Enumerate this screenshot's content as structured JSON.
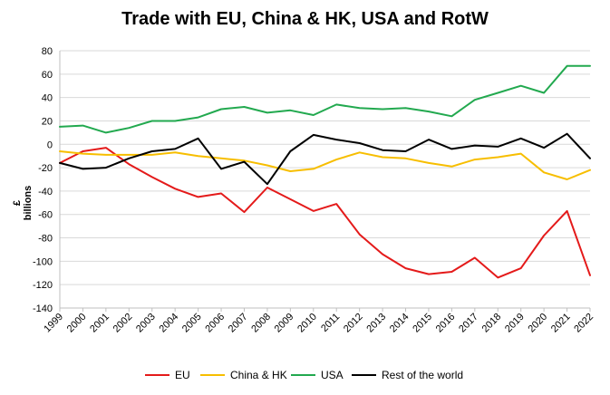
{
  "chart_data": {
    "type": "line",
    "title": "Trade with EU, China & HK, USA and RotW",
    "xlabel": "",
    "ylabel": "£ billions",
    "ylim": [
      -140,
      80
    ],
    "yticks": [
      80,
      60,
      40,
      20,
      0,
      -20,
      -40,
      -60,
      -80,
      -100,
      -120,
      -140
    ],
    "grid": true,
    "legend_position": "bottom",
    "categories": [
      "1999",
      "2000",
      "2001",
      "2002",
      "2003",
      "2004",
      "2005",
      "2006",
      "2007",
      "2008",
      "2009",
      "2010",
      "2011",
      "2012",
      "2013",
      "2014",
      "2015",
      "2016",
      "2017",
      "2018",
      "2019",
      "2020",
      "2021",
      "2022"
    ],
    "series": [
      {
        "name": "EU",
        "color": "#e41a1a",
        "values": [
          -16,
          -6,
          -3,
          -17,
          -28,
          -38,
          -45,
          -42,
          -58,
          -37,
          -47,
          -57,
          -51,
          -77,
          -94,
          -106,
          -111,
          -109,
          -97,
          -114,
          -106,
          -78,
          -57,
          -112
        ]
      },
      {
        "name": "China & HK",
        "color": "#f7be00",
        "values": [
          -6,
          -8,
          -9,
          -9,
          -9,
          -7,
          -10,
          -12,
          -14,
          -18,
          -23,
          -21,
          -13,
          -7,
          -11,
          -12,
          -16,
          -19,
          -13,
          -11,
          -8,
          -24,
          -30,
          -22
        ]
      },
      {
        "name": "USA",
        "color": "#22a94f",
        "values": [
          15,
          16,
          10,
          14,
          20,
          20,
          23,
          30,
          32,
          27,
          29,
          25,
          34,
          31,
          30,
          31,
          28,
          24,
          38,
          44,
          50,
          44,
          67,
          67
        ]
      },
      {
        "name": "Rest of the world",
        "color": "#000000",
        "values": [
          -16,
          -21,
          -20,
          -12,
          -6,
          -4,
          5,
          -21,
          -15,
          -34,
          -6,
          8,
          4,
          1,
          -5,
          -6,
          4,
          -4,
          -1,
          -2,
          5,
          -3,
          9,
          -12
        ]
      }
    ]
  }
}
